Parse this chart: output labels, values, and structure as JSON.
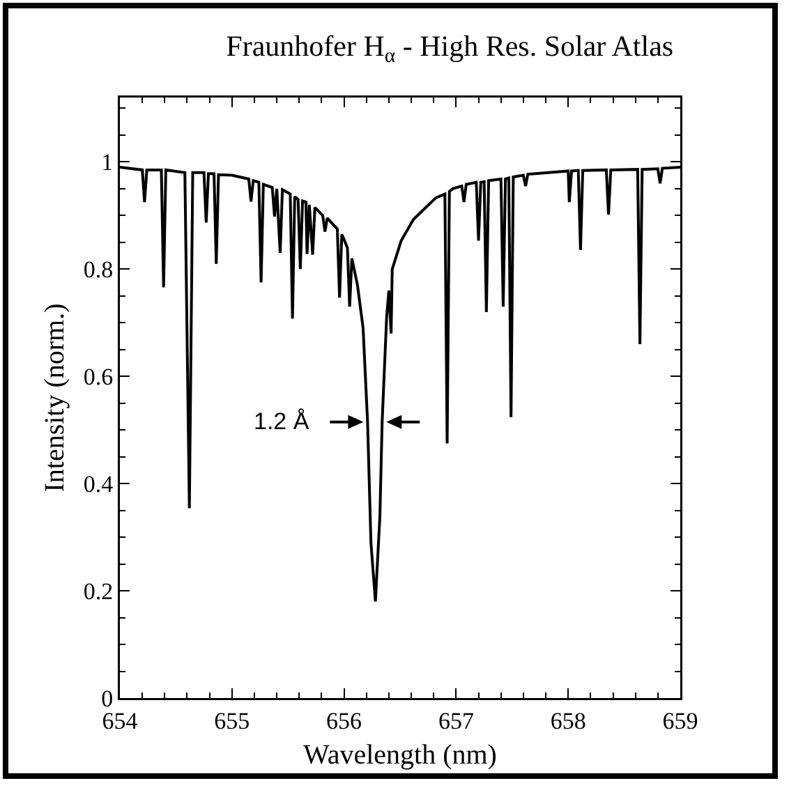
{
  "chart_data": {
    "type": "line",
    "title": "Fraunhofer H$_{α}$ - High Res. Solar Atlas",
    "xlabel": "Wavelength (nm)",
    "ylabel": "Intensity (norm.)",
    "x": [
      654.0,
      654.2,
      654.22,
      654.24,
      654.37,
      654.39,
      654.41,
      654.58,
      654.62,
      654.65,
      654.75,
      654.77,
      654.79,
      654.84,
      654.86,
      654.88,
      655.0,
      655.15,
      655.17,
      655.19,
      655.24,
      655.26,
      655.28,
      655.36,
      655.38,
      655.4,
      655.43,
      655.45,
      655.52,
      655.54,
      655.56,
      655.59,
      655.61,
      655.63,
      655.66,
      655.67,
      655.69,
      655.72,
      655.74,
      655.81,
      655.83,
      655.85,
      655.94,
      655.96,
      655.98,
      656.03,
      656.05,
      656.07,
      656.12,
      656.17,
      656.21,
      656.24,
      656.28,
      656.32,
      656.34,
      656.38,
      656.4,
      656.42,
      656.43,
      656.51,
      656.62,
      656.82,
      656.9,
      656.92,
      656.94,
      656.97,
      657.05,
      657.07,
      657.09,
      657.18,
      657.2,
      657.22,
      657.25,
      657.27,
      657.29,
      657.4,
      657.42,
      657.44,
      657.47,
      657.49,
      657.51,
      657.6,
      657.62,
      657.64,
      658.0,
      658.01,
      658.03,
      658.09,
      658.11,
      658.13,
      658.34,
      658.36,
      658.38,
      658.62,
      658.64,
      658.66,
      658.8,
      658.82,
      658.84,
      659.0
    ],
    "series": [
      {
        "color": "#000000",
        "values": [
          0.99,
          0.985,
          0.925,
          0.985,
          0.985,
          0.766,
          0.985,
          0.98,
          0.354,
          0.98,
          0.98,
          0.887,
          0.978,
          0.978,
          0.81,
          0.976,
          0.975,
          0.968,
          0.926,
          0.965,
          0.962,
          0.775,
          0.958,
          0.952,
          0.898,
          0.95,
          0.83,
          0.948,
          0.94,
          0.708,
          0.935,
          0.93,
          0.8,
          0.927,
          0.925,
          0.828,
          0.92,
          0.827,
          0.915,
          0.9,
          0.87,
          0.895,
          0.875,
          0.747,
          0.865,
          0.84,
          0.73,
          0.82,
          0.77,
          0.69,
          0.515,
          0.29,
          0.18,
          0.34,
          0.515,
          0.71,
          0.76,
          0.68,
          0.8,
          0.853,
          0.893,
          0.933,
          0.94,
          0.475,
          0.945,
          0.95,
          0.955,
          0.925,
          0.958,
          0.962,
          0.853,
          0.962,
          0.963,
          0.72,
          0.965,
          0.968,
          0.73,
          0.968,
          0.97,
          0.524,
          0.972,
          0.975,
          0.955,
          0.977,
          0.983,
          0.925,
          0.983,
          0.984,
          0.836,
          0.984,
          0.985,
          0.902,
          0.985,
          0.986,
          0.66,
          0.986,
          0.987,
          0.96,
          0.988,
          0.99
        ]
      }
    ],
    "xlim": [
      654,
      659
    ],
    "xticks": [
      654,
      655,
      656,
      657,
      658,
      659
    ],
    "ylim": [
      0,
      1.12
    ],
    "yticks": [
      0,
      0.2,
      0.4,
      0.6,
      0.8,
      1
    ],
    "annotations": [
      {
        "text": "1.2 Å",
        "x": 656.28,
        "y": 0.515
      }
    ],
    "grid": false,
    "marker": "none",
    "line_style": "solid"
  }
}
